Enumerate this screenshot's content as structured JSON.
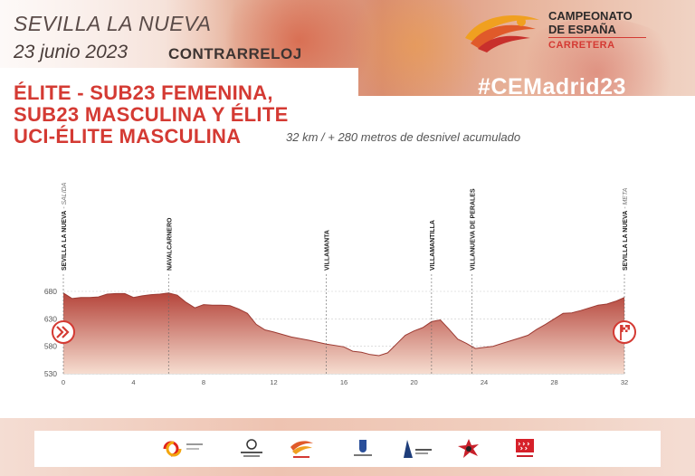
{
  "header": {
    "venue": "SEVILLA LA NUEVA",
    "date": "23 junio 2023",
    "stage_type": "CONTRARRELOJ",
    "hashtag": "#CEMadrid23"
  },
  "logo": {
    "line1": "CAMPEONATO",
    "line2": "DE ESPAÑA",
    "line3": "CARRETERA"
  },
  "categories": {
    "line1": "ÉLITE - SUB23 FEMENINA,",
    "line2": "SUB23 MASCULINA Y ÉLITE",
    "line3": "UCI-ÉLITE MASCULINA"
  },
  "summary": "32 km / + 280 metros de desnivel acumulado",
  "colors": {
    "accent": "#d43a33",
    "profile_top": "#b5453b",
    "profile_bottom": "#f6ddd0"
  },
  "chart_data": {
    "type": "area",
    "x": [
      0,
      0.5,
      1,
      1.5,
      2,
      2.5,
      3,
      3.5,
      4,
      4.5,
      5,
      5.5,
      6,
      6.5,
      7,
      7.5,
      8,
      8.5,
      9,
      9.5,
      10,
      10.5,
      11,
      11.5,
      12,
      13,
      14,
      15,
      16,
      16.5,
      17,
      17.5,
      18,
      18.5,
      19,
      19.5,
      20,
      20.5,
      21,
      21.5,
      22,
      22.5,
      23,
      23.5,
      24,
      24.5,
      25,
      25.5,
      26,
      26.5,
      27,
      27.5,
      28,
      28.5,
      29,
      29.5,
      30,
      30.5,
      31,
      31.5,
      32
    ],
    "y": [
      677,
      667,
      669,
      669,
      670,
      675,
      676,
      676,
      669,
      672,
      674,
      675,
      677,
      673,
      660,
      650,
      656,
      655,
      655,
      654,
      648,
      640,
      620,
      610,
      606,
      597,
      591,
      584,
      579,
      571,
      569,
      565,
      563,
      568,
      584,
      600,
      608,
      614,
      625,
      628,
      611,
      593,
      585,
      576,
      578,
      580,
      585,
      590,
      595,
      600,
      611,
      620,
      630,
      640,
      641,
      645,
      650,
      655,
      657,
      662,
      669
    ],
    "xlim": [
      0,
      32
    ],
    "ylim": [
      530,
      680
    ],
    "x_ticks": [
      "0",
      "4",
      "8",
      "12",
      "16",
      "20",
      "24",
      "28",
      "32"
    ],
    "x_tick_values": [
      0,
      4,
      8,
      12,
      16,
      20,
      24,
      28,
      32
    ],
    "y_ticks": [
      "530",
      "580",
      "630",
      "680"
    ],
    "y_tick_values": [
      530,
      580,
      630,
      680
    ],
    "grid": "horizontal dashed",
    "waypoints": [
      {
        "km": 0,
        "name": "SEVILLA LA NUEVA",
        "note": " - SALIDA"
      },
      {
        "km": 6,
        "name": "NAVALCARNERO",
        "note": ""
      },
      {
        "km": 15,
        "name": "VILLAMANTA",
        "note": ""
      },
      {
        "km": 21,
        "name": "VILLAMANTILLA",
        "note": ""
      },
      {
        "km": 23.3,
        "name": "VILLANUEVA DE PERALES",
        "note": ""
      },
      {
        "km": 32,
        "name": "SEVILLA LA NUEVA",
        "note": " - META"
      }
    ]
  },
  "sponsors": [
    "csd-logo",
    "mad-logo",
    "rfec-ciclismo-logo",
    "ayuntamiento-logo",
    "villa-del-prado-logo",
    "bike-logo",
    "comunidad-madrid-logo"
  ]
}
